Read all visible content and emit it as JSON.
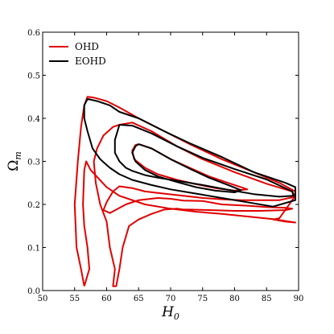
{
  "chart_data": {
    "type": "line",
    "xlabel": "H",
    "xlabel_sub": "0",
    "ylabel": "Ω",
    "ylabel_sub": "m",
    "xlim": [
      50,
      90
    ],
    "ylim": [
      0.0,
      0.6
    ],
    "xticks": [
      "50",
      "55",
      "60",
      "65",
      "70",
      "75",
      "80",
      "85",
      "90"
    ],
    "yticks": [
      "0.0",
      "0.1",
      "0.2",
      "0.3",
      "0.4",
      "0.5",
      "0.6"
    ],
    "grid": false,
    "legend_position": "top-left",
    "legend": [
      {
        "label": "OHD",
        "color": "#e00000"
      },
      {
        "label": "EOHD",
        "color": "#000000"
      }
    ],
    "series": [
      {
        "name": "OHD",
        "color": "#e00000",
        "contours": [
          {
            "level": "inner",
            "points": [
              [
                65,
                0.34
              ],
              [
                67,
                0.33
              ],
              [
                70,
                0.305
              ],
              [
                73,
                0.285
              ],
              [
                76,
                0.265
              ],
              [
                79,
                0.25
              ],
              [
                81,
                0.24
              ],
              [
                82,
                0.235
              ],
              [
                80,
                0.232
              ],
              [
                77,
                0.238
              ],
              [
                74,
                0.247
              ],
              [
                71,
                0.257
              ],
              [
                68,
                0.27
              ],
              [
                66,
                0.285
              ],
              [
                64.3,
                0.305
              ],
              [
                64,
                0.325
              ],
              [
                64.5,
                0.338
              ],
              [
                65,
                0.34
              ]
            ]
          },
          {
            "level": "middle",
            "points": [
              [
                62,
                0.385
              ],
              [
                64,
                0.39
              ],
              [
                67,
                0.37
              ],
              [
                71,
                0.335
              ],
              [
                75,
                0.305
              ],
              [
                80,
                0.275
              ],
              [
                85,
                0.248
              ],
              [
                89,
                0.23
              ],
              [
                89.5,
                0.218
              ],
              [
                87,
                0.21
              ],
              [
                84,
                0.21
              ],
              [
                81,
                0.21
              ],
              [
                78,
                0.212
              ],
              [
                75,
                0.215
              ],
              [
                72,
                0.22
              ],
              [
                69,
                0.225
              ],
              [
                66,
                0.23
              ],
              [
                64,
                0.238
              ],
              [
                62,
                0.242
              ],
              [
                61,
                0.23
              ],
              [
                60,
                0.205
              ],
              [
                59.5,
                0.187
              ],
              [
                60.5,
                0.18
              ],
              [
                63,
                0.2
              ],
              [
                65,
                0.21
              ],
              [
                68,
                0.215
              ],
              [
                70,
                0.213
              ],
              [
                72,
                0.209
              ],
              [
                75,
                0.208
              ],
              [
                78,
                0.2
              ],
              [
                82,
                0.197
              ],
              [
                85,
                0.194
              ],
              [
                88,
                0.192
              ],
              [
                89,
                0.19
              ],
              [
                88,
                0.187
              ],
              [
                84,
                0.185
              ],
              [
                80,
                0.185
              ],
              [
                76,
                0.187
              ],
              [
                73,
                0.188
              ],
              [
                72,
                0.188
              ],
              [
                71,
                0.19
              ],
              [
                69,
                0.188
              ],
              [
                67,
                0.178
              ],
              [
                65,
                0.165
              ],
              [
                63.5,
                0.15
              ],
              [
                62.5,
                0.1
              ],
              [
                62,
                0.05
              ],
              [
                61.5,
                0.01
              ],
              [
                61,
                0.01
              ],
              [
                61.3,
                0.05
              ],
              [
                60.5,
                0.1
              ],
              [
                60,
                0.16
              ],
              [
                59,
                0.2
              ],
              [
                58.3,
                0.25
              ],
              [
                58,
                0.3
              ],
              [
                58.5,
                0.33
              ],
              [
                59.5,
                0.36
              ],
              [
                61,
                0.38
              ],
              [
                62,
                0.385
              ]
            ]
          },
          {
            "level": "outer",
            "points": [
              [
                56.5,
                0.01
              ],
              [
                56,
                0.05
              ],
              [
                55.3,
                0.1
              ],
              [
                55,
                0.2
              ],
              [
                55.5,
                0.3
              ],
              [
                56,
                0.38
              ],
              [
                56.5,
                0.43
              ],
              [
                57,
                0.45
              ],
              [
                58,
                0.448
              ],
              [
                60,
                0.44
              ],
              [
                62,
                0.425
              ],
              [
                65,
                0.4
              ],
              [
                69,
                0.37
              ],
              [
                73,
                0.34
              ],
              [
                78,
                0.305
              ],
              [
                83,
                0.275
              ],
              [
                87,
                0.25
              ],
              [
                89.5,
                0.23
              ],
              [
                89.5,
                0.22
              ],
              [
                87,
                0.168
              ],
              [
                86,
                0.165
              ],
              [
                88,
                0.16
              ],
              [
                89.5,
                0.158
              ],
              [
                86,
                0.166
              ],
              [
                82,
                0.172
              ],
              [
                78,
                0.178
              ],
              [
                74,
                0.183
              ],
              [
                70,
                0.19
              ],
              [
                66,
                0.2
              ],
              [
                62,
                0.22
              ],
              [
                60,
                0.24
              ],
              [
                57.5,
                0.28
              ],
              [
                56.8,
                0.3
              ],
              [
                56.5,
                0.28
              ],
              [
                56.3,
                0.2
              ],
              [
                56.5,
                0.15
              ],
              [
                57,
                0.1
              ],
              [
                57.3,
                0.05
              ],
              [
                56.5,
                0.01
              ]
            ]
          }
        ]
      },
      {
        "name": "EOHD",
        "color": "#000000",
        "contours": [
          {
            "level": "inner",
            "points": [
              [
                65,
                0.34
              ],
              [
                67,
                0.33
              ],
              [
                70,
                0.305
              ],
              [
                73,
                0.283
              ],
              [
                76,
                0.262
              ],
              [
                79,
                0.245
              ],
              [
                81,
                0.233
              ],
              [
                80,
                0.228
              ],
              [
                77,
                0.232
              ],
              [
                74,
                0.24
              ],
              [
                71,
                0.252
              ],
              [
                68,
                0.265
              ],
              [
                66,
                0.28
              ],
              [
                64.5,
                0.3
              ],
              [
                64,
                0.32
              ],
              [
                64.5,
                0.335
              ],
              [
                65,
                0.34
              ]
            ]
          },
          {
            "level": "middle",
            "points": [
              [
                62,
                0.385
              ],
              [
                64,
                0.383
              ],
              [
                67,
                0.365
              ],
              [
                71,
                0.335
              ],
              [
                75,
                0.308
              ],
              [
                80,
                0.282
              ],
              [
                85,
                0.258
              ],
              [
                89,
                0.23
              ],
              [
                89.2,
                0.22
              ],
              [
                87,
                0.218
              ],
              [
                83,
                0.224
              ],
              [
                79,
                0.234
              ],
              [
                75,
                0.245
              ],
              [
                71,
                0.255
              ],
              [
                68,
                0.262
              ],
              [
                66,
                0.268
              ],
              [
                64,
                0.278
              ],
              [
                63,
                0.285
              ],
              [
                62,
                0.3
              ],
              [
                61.3,
                0.32
              ],
              [
                61.3,
                0.35
              ],
              [
                62,
                0.385
              ]
            ]
          },
          {
            "level": "outer",
            "points": [
              [
                57,
                0.445
              ],
              [
                58.5,
                0.44
              ],
              [
                60.5,
                0.43
              ],
              [
                62,
                0.415
              ],
              [
                65,
                0.4
              ],
              [
                69,
                0.37
              ],
              [
                73,
                0.342
              ],
              [
                78,
                0.31
              ],
              [
                83,
                0.275
              ],
              [
                88,
                0.25
              ],
              [
                89.5,
                0.24
              ],
              [
                89.5,
                0.21
              ],
              [
                86,
                0.195
              ],
              [
                82,
                0.205
              ],
              [
                78,
                0.215
              ],
              [
                74,
                0.225
              ],
              [
                70,
                0.235
              ],
              [
                67,
                0.245
              ],
              [
                64,
                0.257
              ],
              [
                62,
                0.27
              ],
              [
                60.5,
                0.285
              ],
              [
                59,
                0.305
              ],
              [
                57.8,
                0.33
              ],
              [
                57,
                0.37
              ],
              [
                56.5,
                0.4
              ],
              [
                56.5,
                0.43
              ],
              [
                57,
                0.445
              ]
            ]
          }
        ]
      }
    ]
  }
}
